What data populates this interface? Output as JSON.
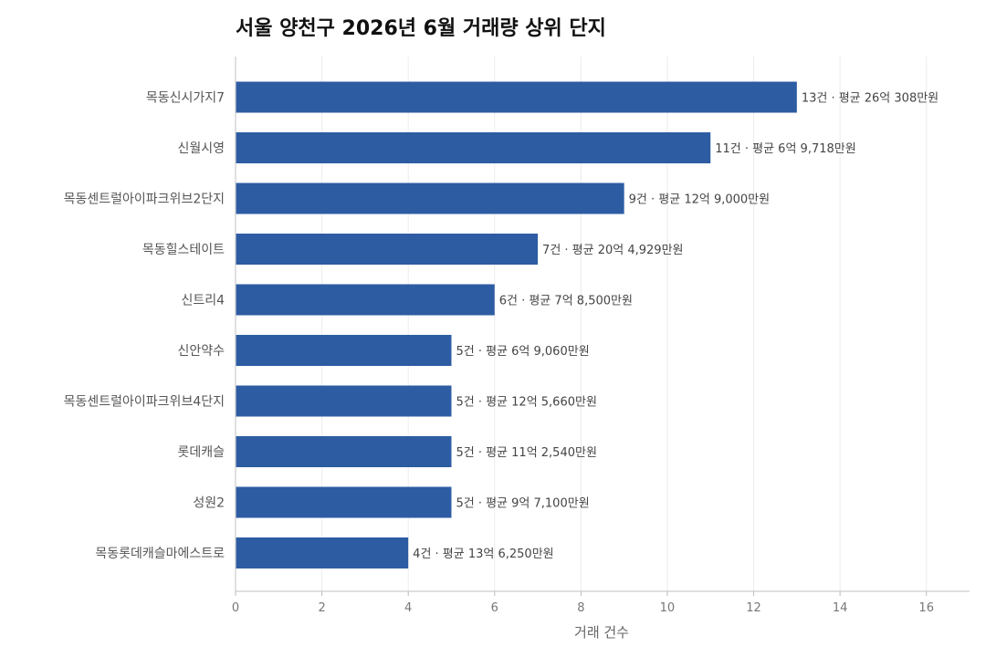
{
  "chart_data": {
    "type": "bar",
    "orientation": "horizontal",
    "title": "서울 양천구 2026년 6월 거래량 상위 단지",
    "xlabel": "거래 건수",
    "ylabel": "",
    "xlim": [
      0,
      17
    ],
    "x_ticks": [
      0,
      2,
      4,
      6,
      8,
      10,
      12,
      14,
      16
    ],
    "grid": "vertical",
    "bar_color": "#2d5ca3",
    "categories": [
      "목동신시가지7",
      "신월시영",
      "목동센트럴아이파크위브2단지",
      "목동힐스테이트",
      "신트리4",
      "신안약수",
      "목동센트럴아이파크위브4단지",
      "롯데캐슬",
      "성원2",
      "목동롯데캐슬마에스트로"
    ],
    "values": [
      13,
      11,
      9,
      7,
      6,
      5,
      5,
      5,
      5,
      4
    ],
    "data_labels": [
      "13건 · 평균 26억 308만원",
      "11건 · 평균 6억 9,718만원",
      "9건 · 평균 12억 9,000만원",
      "7건 · 평균 20억 4,929만원",
      "6건 · 평균 7억 8,500만원",
      "5건 · 평균 6억 9,060만원",
      "5건 · 평균 12억 5,660만원",
      "5건 · 평균 11억 2,540만원",
      "5건 · 평균 9억 7,100만원",
      "4건 · 평균 13억 6,250만원"
    ]
  }
}
